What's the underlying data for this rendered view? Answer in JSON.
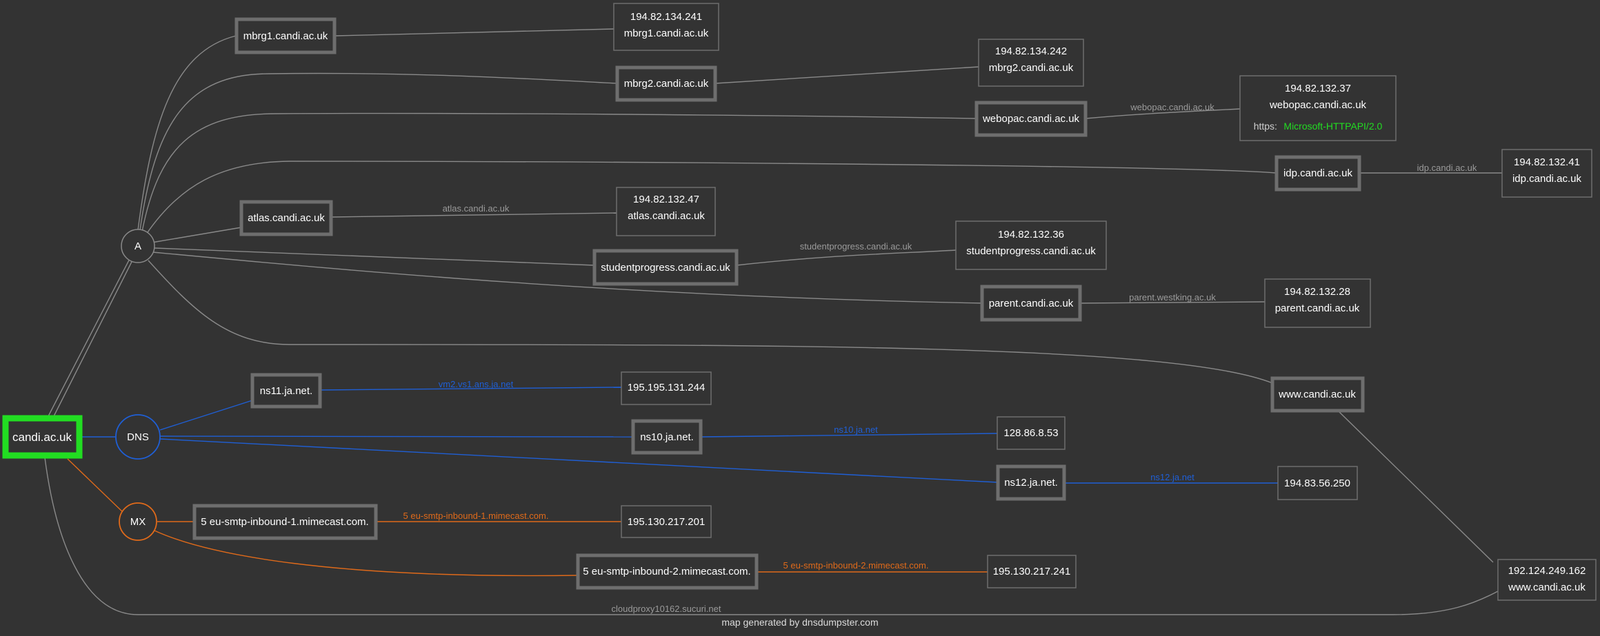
{
  "root": {
    "label": "candi.ac.uk",
    "accent": "#22dd22"
  },
  "record_types": {
    "a": "A",
    "dns": "DNS",
    "mx": "MX"
  },
  "hosts": {
    "mbrg1": "mbrg1.candi.ac.uk",
    "mbrg2": "mbrg2.candi.ac.uk",
    "webopac": "webopac.candi.ac.uk",
    "idp": "idp.candi.ac.uk",
    "atlas": "atlas.candi.ac.uk",
    "studentprogress": "studentprogress.candi.ac.uk",
    "parent": "parent.candi.ac.uk",
    "www": "www.candi.ac.uk",
    "ns11": "ns11.ja.net.",
    "ns10": "ns10.ja.net.",
    "ns12": "ns12.ja.net.",
    "mx1": "5 eu-smtp-inbound-1.mimecast.com.",
    "mx2": "5 eu-smtp-inbound-2.mimecast.com."
  },
  "ip_nodes": {
    "mbrg1": {
      "ip": "194.82.134.241",
      "host": "mbrg1.candi.ac.uk"
    },
    "mbrg2": {
      "ip": "194.82.134.242",
      "host": "mbrg2.candi.ac.uk"
    },
    "webopac": {
      "ip": "194.82.132.37",
      "host": "webopac.candi.ac.uk",
      "https_label": "https:",
      "https_value": "Microsoft-HTTPAPI/2.0"
    },
    "idp": {
      "ip": "194.82.132.41",
      "host": "idp.candi.ac.uk"
    },
    "atlas": {
      "ip": "194.82.132.47",
      "host": "atlas.candi.ac.uk"
    },
    "studentprogress": {
      "ip": "194.82.132.36",
      "host": "studentprogress.candi.ac.uk"
    },
    "parent": {
      "ip": "194.82.132.28",
      "host": "parent.candi.ac.uk"
    },
    "www": {
      "ip": "192.124.249.162",
      "host": "www.candi.ac.uk"
    },
    "ns11": {
      "ip": "195.195.131.244"
    },
    "ns10": {
      "ip": "128.86.8.53"
    },
    "ns12": {
      "ip": "194.83.56.250"
    },
    "mx1": {
      "ip": "195.130.217.201"
    },
    "mx2": {
      "ip": "195.130.217.241"
    }
  },
  "edge_labels": {
    "webopac": "webopac.candi.ac.uk",
    "idp": "idp.candi.ac.uk",
    "atlas": "atlas.candi.ac.uk",
    "studentprogress": "studentprogress.candi.ac.uk",
    "parent": "parent.westking.ac.uk",
    "ns11": "vm2.vs1.ans.ja.net",
    "ns10": "ns10.ja.net",
    "ns12": "ns12.ja.net",
    "mx1": "5 eu-smtp-inbound-1.mimecast.com.",
    "mx2": "5 eu-smtp-inbound-2.mimecast.com.",
    "cloudproxy": "cloudproxy10162.sucuri.net"
  },
  "colors": {
    "a_edge": "#8a8a8a",
    "dns_edge": "#1f5fd6",
    "mx_edge": "#e06a1a",
    "box_border": "#6e6e6e",
    "background": "#333333"
  },
  "footer": "map generated by dnsdumpster.com"
}
